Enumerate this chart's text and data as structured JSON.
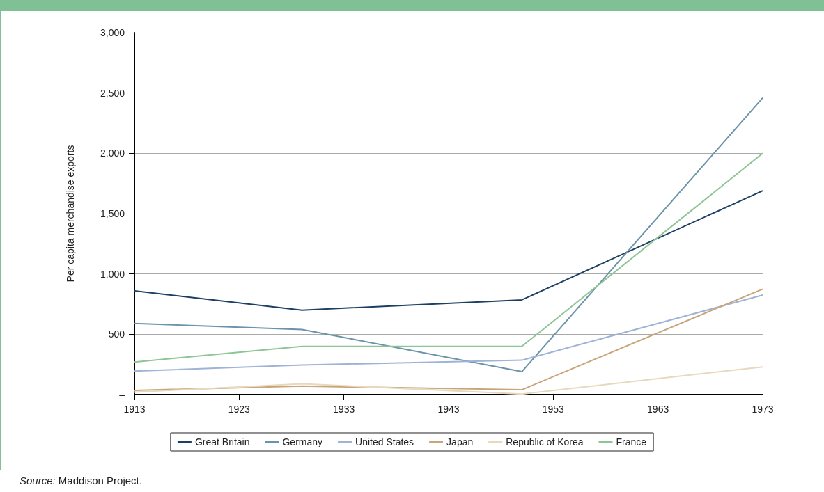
{
  "chart_data": {
    "type": "line",
    "ylabel": "Per capita merchandise exports",
    "x": [
      1913,
      1929,
      1950,
      1973
    ],
    "xlim": [
      1913,
      1973
    ],
    "xticks": [
      1913,
      1923,
      1933,
      1943,
      1953,
      1963,
      1973
    ],
    "ylim": [
      0,
      3000
    ],
    "yticks": [
      {
        "value": 0,
        "label": "–"
      },
      500,
      {
        "value": 1000,
        "label": "1,000"
      },
      {
        "value": 1500,
        "label": "1,500"
      },
      {
        "value": 2000,
        "label": "2,000"
      },
      {
        "value": 2500,
        "label": "2,500"
      },
      {
        "value": 3000,
        "label": "3,000"
      }
    ],
    "grid": "y",
    "legend": "bottom",
    "marker": "none",
    "line_style": "solid",
    "series": [
      {
        "name": "Great Britain",
        "color": "#1d3f63",
        "values": [
          860,
          700,
          785,
          1690
        ]
      },
      {
        "name": "Germany",
        "color": "#6b93aa",
        "values": [
          590,
          540,
          190,
          2460
        ]
      },
      {
        "name": "United States",
        "color": "#9fb3d6",
        "values": [
          195,
          245,
          285,
          825
        ]
      },
      {
        "name": "Japan",
        "color": "#c9a679",
        "values": [
          35,
          70,
          40,
          875
        ]
      },
      {
        "name": "Republic of Korea",
        "color": "#e8d8bd",
        "values": [
          20,
          90,
          5,
          230
        ]
      },
      {
        "name": "France",
        "color": "#8ec596",
        "values": [
          270,
          400,
          400,
          2000
        ]
      }
    ],
    "annotations": [
      "Source: Maddison Project."
    ]
  }
}
